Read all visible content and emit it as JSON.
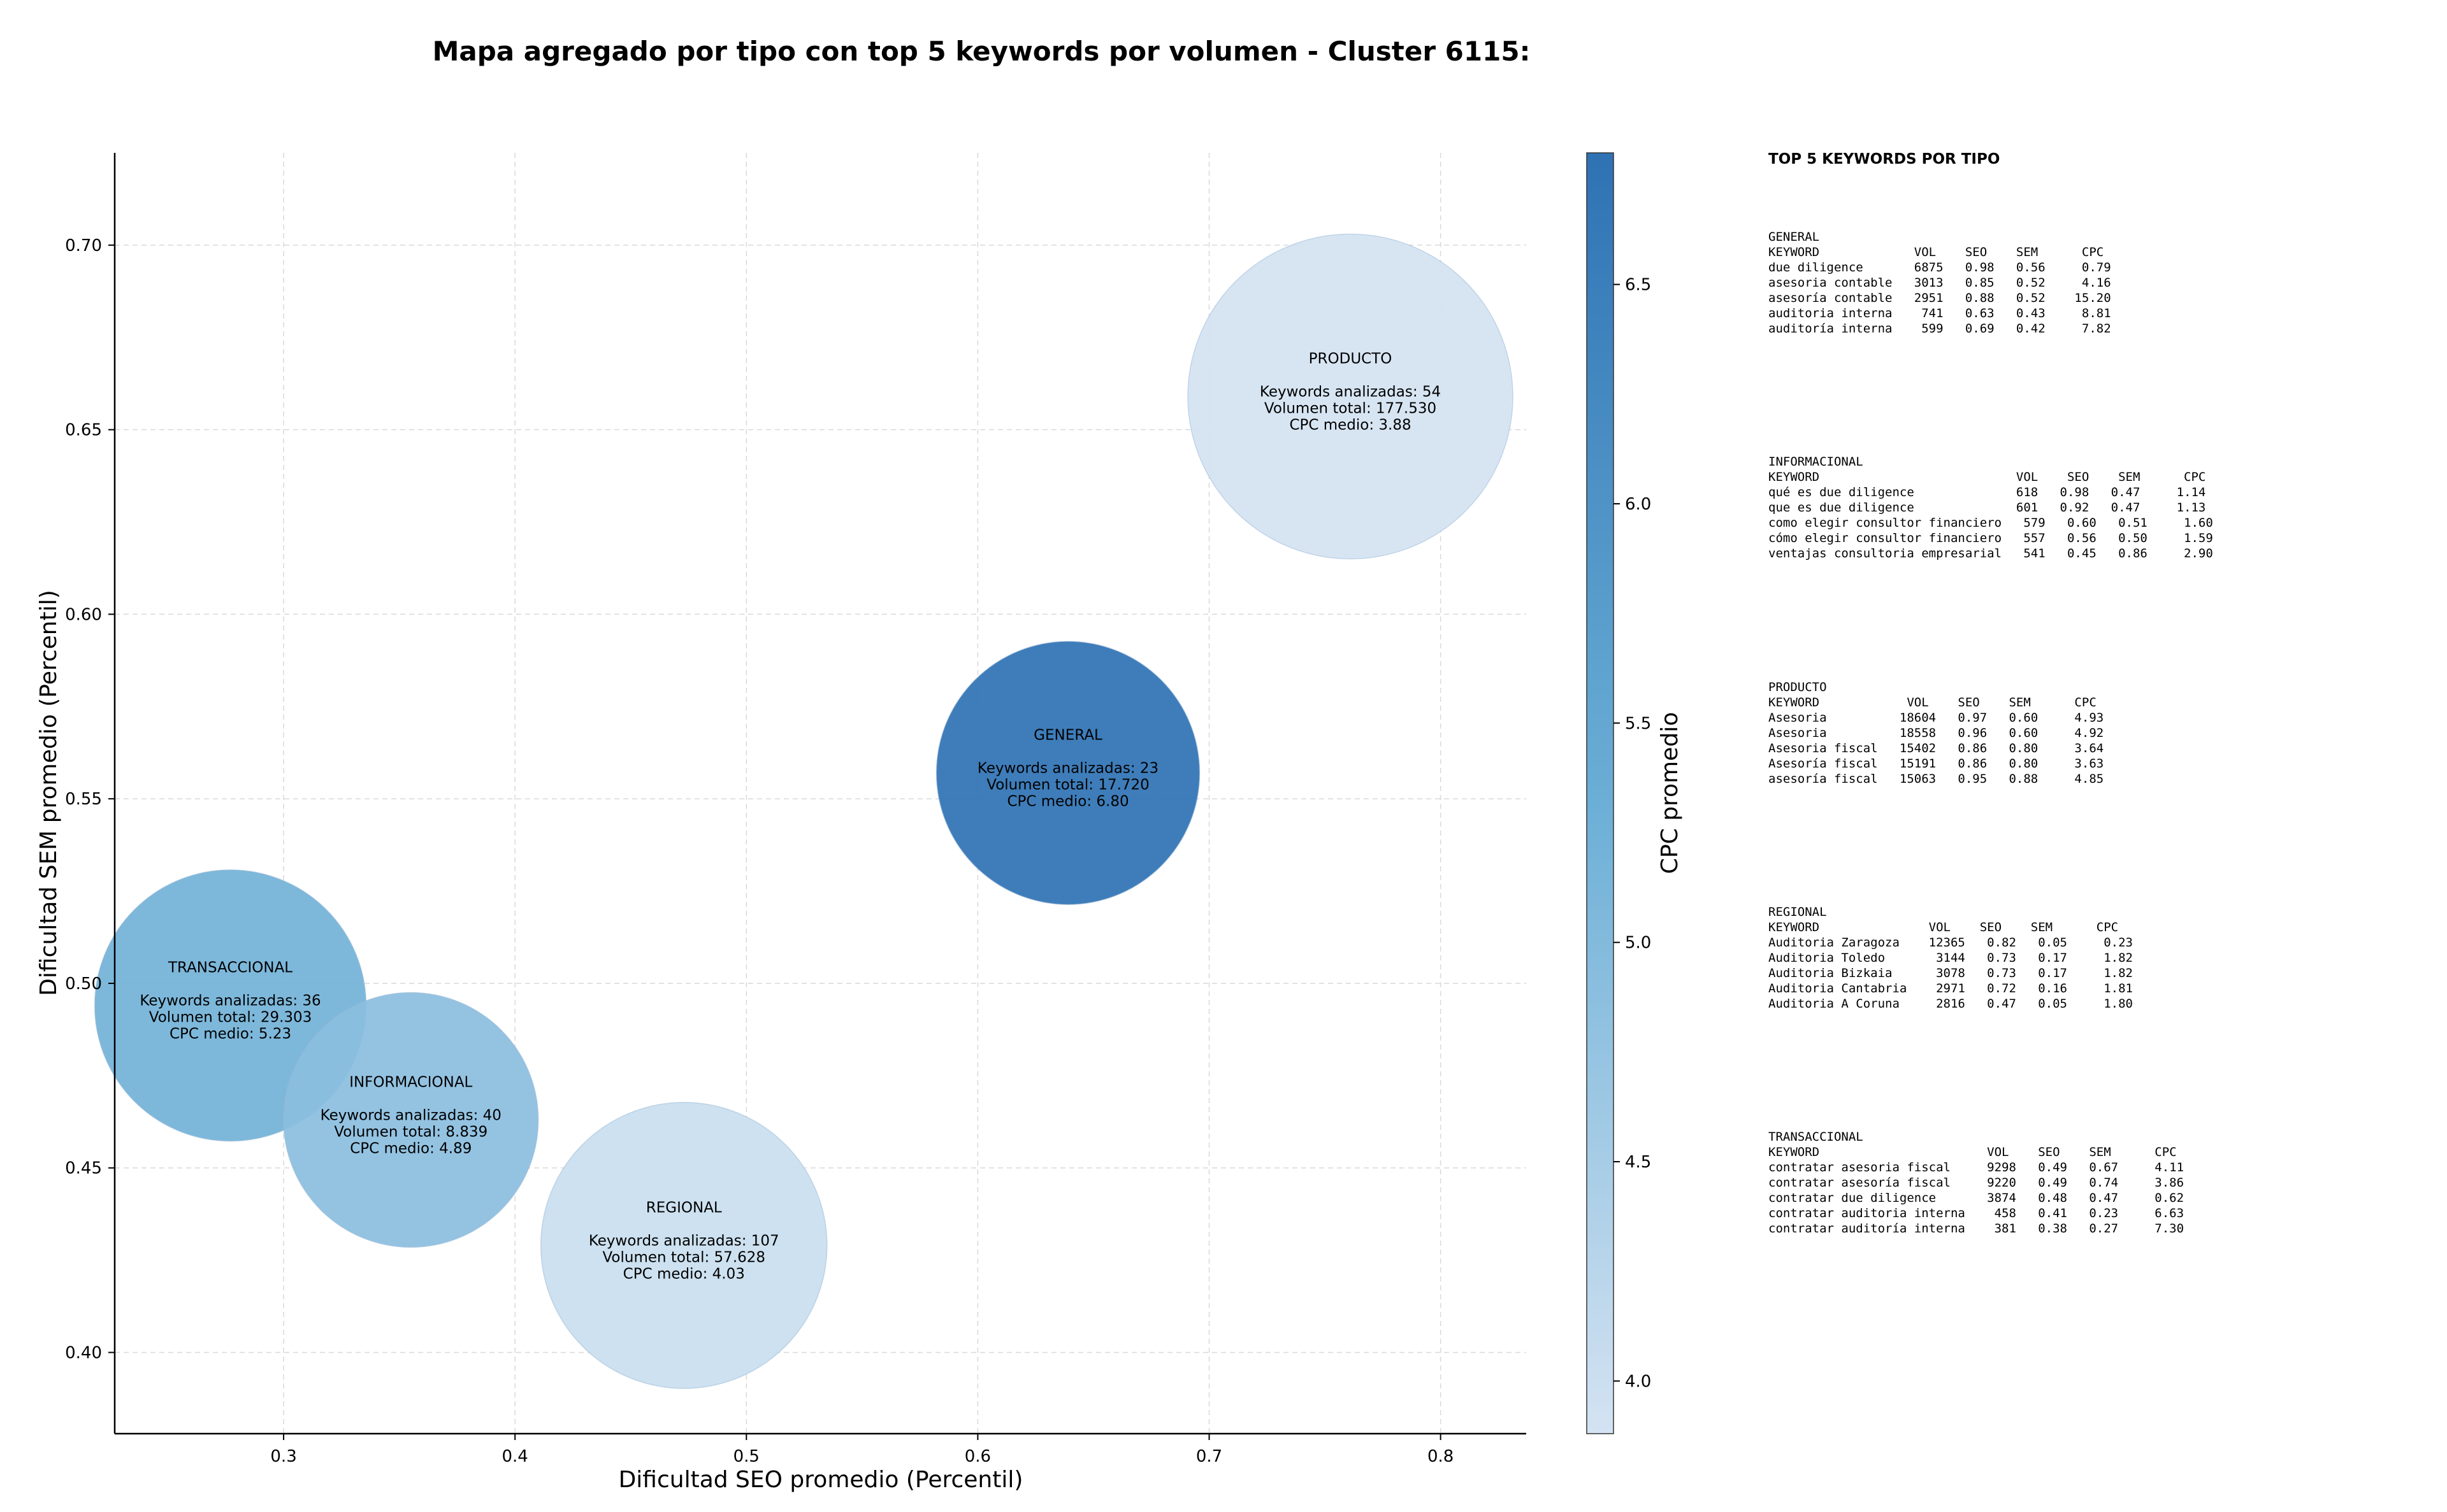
{
  "chart_data": {
    "type": "scatter",
    "title": "Mapa agregado por tipo con top 5 keywords por volumen - Cluster 6115:",
    "xlabel": "Dificultad SEO promedio (Percentil)",
    "ylabel": "Dificultad SEM promedio (Percentil)",
    "xlim": [
      0.227,
      0.837
    ],
    "ylim": [
      0.378,
      0.725
    ],
    "xticks": [
      "0.3",
      "0.4",
      "0.5",
      "0.6",
      "0.7",
      "0.8"
    ],
    "yticks": [
      "0.40",
      "0.45",
      "0.50",
      "0.55",
      "0.60",
      "0.65",
      "0.70"
    ],
    "grid": true,
    "colorbar": {
      "label": "CPC promedio",
      "range": [
        3.88,
        6.8
      ],
      "ticks": [
        "4.0",
        "4.5",
        "5.0",
        "5.5",
        "6.0",
        "6.5"
      ],
      "colormap": [
        "#d4e3f2",
        "#6aaed6",
        "#2e72b4"
      ]
    },
    "series": [
      {
        "name": "PRODUCTO",
        "x": 0.761,
        "y": 0.659,
        "cpc": 3.88,
        "keywords": 54,
        "volume": 177530,
        "lines": [
          "Keywords analizadas: 54",
          "Volumen total: 177.530",
          "CPC medio: 3.88"
        ]
      },
      {
        "name": "GENERAL",
        "x": 0.639,
        "y": 0.557,
        "cpc": 6.8,
        "keywords": 23,
        "volume": 17720,
        "lines": [
          "Keywords analizadas: 23",
          "Volumen total: 17.720",
          "CPC medio: 6.80"
        ]
      },
      {
        "name": "TRANSACCIONAL",
        "x": 0.277,
        "y": 0.494,
        "cpc": 5.23,
        "keywords": 36,
        "volume": 29303,
        "lines": [
          "Keywords analizadas: 36",
          "Volumen total: 29.303",
          "CPC medio: 5.23"
        ]
      },
      {
        "name": "INFORMACIONAL",
        "x": 0.355,
        "y": 0.463,
        "cpc": 4.89,
        "keywords": 40,
        "volume": 8839,
        "lines": [
          "Keywords analizadas: 40",
          "Volumen total: 8.839",
          "CPC medio: 4.89"
        ]
      },
      {
        "name": "REGIONAL",
        "x": 0.473,
        "y": 0.429,
        "cpc": 4.03,
        "keywords": 107,
        "volume": 57628,
        "lines": [
          "Keywords analizadas: 107",
          "Volumen total: 57.628",
          "CPC medio: 4.03"
        ]
      }
    ]
  },
  "top_keywords": {
    "title": "TOP 5 KEYWORDS POR TIPO",
    "blocks": [
      {
        "lines": [
          "GENERAL",
          "KEYWORD             VOL    SEO    SEM      CPC",
          "due diligence       6875   0.98   0.56     0.79",
          "asesoria contable   3013   0.85   0.52     4.16",
          "asesoría contable   2951   0.88   0.52    15.20",
          "auditoria interna    741   0.63   0.43     8.81",
          "auditoría interna    599   0.69   0.42     7.82"
        ]
      },
      {
        "lines": [
          "INFORMACIONAL",
          "KEYWORD                           VOL    SEO    SEM      CPC",
          "qué es due diligence              618   0.98   0.47     1.14",
          "que es due diligence              601   0.92   0.47     1.13",
          "como elegir consultor financiero   579   0.60   0.51     1.60",
          "cómo elegir consultor financiero   557   0.56   0.50     1.59",
          "ventajas consultoria empresarial   541   0.45   0.86     2.90"
        ]
      },
      {
        "lines": [
          "PRODUCTO",
          "KEYWORD            VOL    SEO    SEM      CPC",
          "Asesoria          18604   0.97   0.60     4.93",
          "Asesoria          18558   0.96   0.60     4.92",
          "Asesoria fiscal   15402   0.86   0.80     3.64",
          "Asesoría fiscal   15191   0.86   0.80     3.63",
          "asesoría fiscal   15063   0.95   0.88     4.85"
        ]
      },
      {
        "lines": [
          "REGIONAL",
          "KEYWORD               VOL    SEO    SEM      CPC",
          "Auditoria Zaragoza    12365   0.82   0.05     0.23",
          "Auditoria Toledo       3144   0.73   0.17     1.82",
          "Auditoria Bizkaia      3078   0.73   0.17     1.82",
          "Auditoria Cantabria    2971   0.72   0.16     1.81",
          "Auditoria A Coruna     2816   0.47   0.05     1.80"
        ]
      },
      {
        "lines": [
          "TRANSACCIONAL",
          "KEYWORD                       VOL    SEO    SEM      CPC",
          "contratar asesoria fiscal     9298   0.49   0.67     4.11",
          "contratar asesoría fiscal     9220   0.49   0.74     3.86",
          "contratar due diligence       3874   0.48   0.47     0.62",
          "contratar auditoria interna    458   0.41   0.23     6.63",
          "contratar auditoría interna    381   0.38   0.27     7.30"
        ]
      }
    ]
  }
}
